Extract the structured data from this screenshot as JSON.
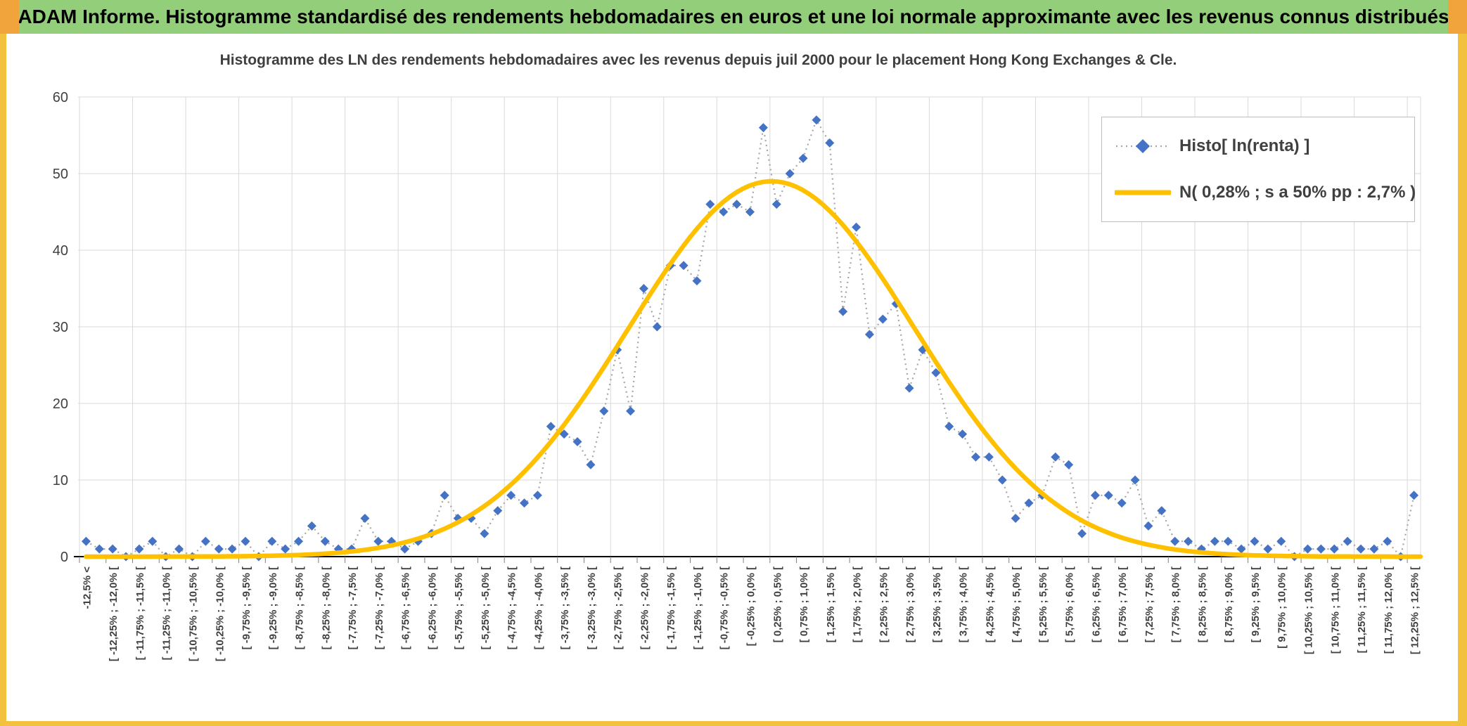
{
  "banner": {
    "title": "ADAM Informe. Histogramme standardisé des rendements hebdomadaires en euros et une loi normale approximante avec les revenus connus distribués"
  },
  "page": {
    "colors": {
      "banner_green": "#93CF7B",
      "corner_orange": "#F1A33C",
      "edge_gold": "#F2C23E",
      "background": "#FFFFFF"
    }
  },
  "chart_data": {
    "type": "line",
    "title": "Histogramme des LN des rendements hebdomadaires avec les revenus depuis juil 2000 pour le placement Hong Kong Exchanges & Cle.",
    "xlabel": "",
    "ylabel": "",
    "ylim": [
      0,
      60
    ],
    "y_ticks": [
      0,
      10,
      20,
      30,
      40,
      50,
      60
    ],
    "bin_width_pct": 0.25,
    "x_range_pct": [
      -12.5,
      12.5
    ],
    "grid": true,
    "legend_position": "top-right",
    "colors": {
      "gridline": "#D9D9D9",
      "axis": "#000000",
      "tick": "#808080",
      "text": "#404040"
    },
    "x_tick_labels": [
      "-12,5% <",
      "[ -12,25% ; -12,0% [",
      "[ -11,75% ; -11,5% [",
      "[ -11,25% ; -11,0% [",
      "[ -10,75% ; -10,5% [",
      "[ -10,25% ; -10,0% [",
      "[ -9,75% ; -9,5% [",
      "[ -9,25% ; -9,0% [",
      "[ -8,75% ; -8,5% [",
      "[ -8,25% ; -8,0% [",
      "[ -7,75% ; -7,5% [",
      "[ -7,25% ; -7,0% [",
      "[ -6,75% ; -6,5% [",
      "[ -6,25% ; -6,0% [",
      "[ -5,75% ; -5,5% [",
      "[ -5,25% ; -5,0% [",
      "[ -4,75% ; -4,5% [",
      "[ -4,25% ; -4,0% [",
      "[ -3,75% ; -3,5% [",
      "[ -3,25% ; -3,0% [",
      "[ -2,75% ; -2,5% [",
      "[ -2,25% ; -2,0% [",
      "[ -1,75% ; -1,5% [",
      "[ -1,25% ; -1,0% [",
      "[ -0,75% ; -0,5% [",
      "[ -0,25% ; 0,0% [",
      "[ 0,25% ; 0,5% [",
      "[ 0,75% ; 1,0% [",
      "[ 1,25% ; 1,5% [",
      "[ 1,75% ; 2,0% [",
      "[ 2,25% ; 2,5% [",
      "[ 2,75% ; 3,0% [",
      "[ 3,25% ; 3,5% [",
      "[ 3,75% ; 4,0% [",
      "[ 4,25% ; 4,5% [",
      "[ 4,75% ; 5,0% [",
      "[ 5,25% ; 5,5% [",
      "[ 5,75% ; 6,0% [",
      "[ 6,25% ; 6,5% [",
      "[ 6,75% ; 7,0% [",
      "[ 7,25% ; 7,5% [",
      "[ 7,75% ; 8,0% [",
      "[ 8,25% ; 8,5% [",
      "[ 8,75% ; 9,0% [",
      "[ 9,25% ; 9,5% [",
      "[ 9,75% ; 10,0% [",
      "[ 10,25% ; 10,5% [",
      "[ 10,75% ; 11,0% [",
      "[ 11,25% ; 11,5% [",
      "[ 11,75% ; 12,0% [",
      "[ 12,25% ; 12,5% ["
    ],
    "series": [
      {
        "name": "Histo[ ln(renta) ]",
        "type": "scatter-line",
        "marker": "diamond",
        "color": "#4472C4",
        "line_color": "#A6A6A6",
        "values": [
          2,
          1,
          1,
          0,
          1,
          2,
          0,
          1,
          0,
          2,
          1,
          1,
          2,
          0,
          2,
          1,
          2,
          4,
          2,
          1,
          1,
          5,
          2,
          2,
          1,
          2,
          3,
          8,
          5,
          5,
          3,
          6,
          8,
          7,
          8,
          17,
          16,
          15,
          12,
          19,
          27,
          19,
          35,
          30,
          38,
          38,
          36,
          46,
          45,
          46,
          45,
          56,
          46,
          50,
          52,
          57,
          54,
          32,
          43,
          29,
          31,
          33,
          22,
          27,
          24,
          17,
          16,
          13,
          13,
          10,
          5,
          7,
          8,
          13,
          12,
          3,
          8,
          8,
          7,
          10,
          4,
          6,
          2,
          2,
          1,
          2,
          2,
          1,
          2,
          1,
          2,
          0,
          1,
          1,
          1,
          2,
          1,
          1,
          2,
          0,
          8
        ]
      },
      {
        "name": "N( 0,28% ; s a 50% pp : 2,7% )",
        "type": "normal-curve",
        "color": "#FFC000",
        "mean_pct": 0.28,
        "sd_pct": 2.7,
        "peak": 49
      }
    ]
  }
}
